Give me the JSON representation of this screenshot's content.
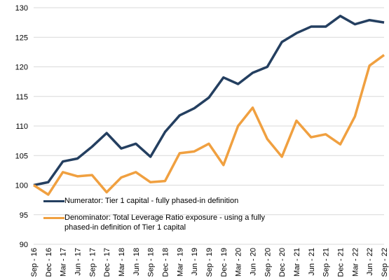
{
  "chart_data": {
    "type": "line",
    "categories": [
      "Sep - 16",
      "Dec - 16",
      "Mar - 17",
      "Jun - 17",
      "Sep - 17",
      "Dec - 17",
      "Mar - 18",
      "Jun - 18",
      "Sep - 18",
      "Dec - 18",
      "Mar - 19",
      "Jun - 19",
      "Sep - 19",
      "Dec - 19",
      "Mar - 20",
      "Jun - 20",
      "Sep - 20",
      "Dec - 20",
      "Mar - 21",
      "Jun - 21",
      "Sep - 21",
      "Dec - 21",
      "Mar - 22",
      "Jun - 22",
      "Sep - 22"
    ],
    "series": [
      {
        "name": "Numerator: Tier 1 capital - fully phased-in definition",
        "color": "#243f60",
        "values": [
          100,
          100.5,
          104,
          104.5,
          106.5,
          108.8,
          106.2,
          107,
          104.8,
          109,
          111.8,
          113,
          114.8,
          118.2,
          117.1,
          119,
          120,
          124.2,
          125.7,
          126.8,
          126.8,
          128.6,
          127.2,
          127.9,
          127.5
        ]
      },
      {
        "name": "Denominator: Total Leverage Ratio exposure - using a fully phased-in definition of Tier 1 capital",
        "color": "#f0a040",
        "values": [
          100,
          98.4,
          102.2,
          101.5,
          101.7,
          98.8,
          101.3,
          102.2,
          100.5,
          100.7,
          105.4,
          105.7,
          107,
          103.4,
          110,
          113.1,
          107.8,
          104.8,
          110.9,
          108.1,
          108.6,
          106.9,
          111.6,
          120.2,
          122
        ]
      }
    ],
    "ylim": [
      90,
      130
    ],
    "yticks": [
      90,
      95,
      100,
      105,
      110,
      115,
      120,
      125,
      130
    ],
    "grid": true
  }
}
